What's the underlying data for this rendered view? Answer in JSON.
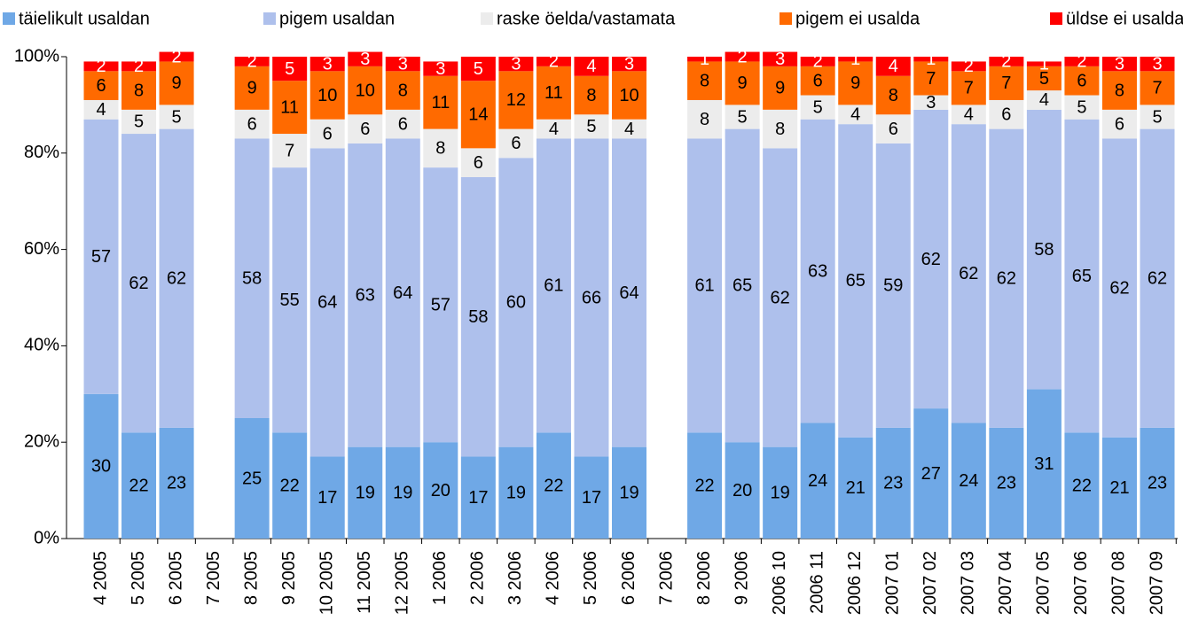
{
  "chart_data": {
    "type": "stacked_bar",
    "categories": [
      "4 2005",
      "5 2005",
      "6 2005",
      "7 2005",
      "8 2005",
      "9 2005",
      "10 2005",
      "11 2005",
      "12 2005",
      "1 2006",
      "2 2006",
      "3 2006",
      "4 2006",
      "5 2006",
      "6 2006",
      "7 2006",
      "8 2006",
      "9 2006",
      "2006 10",
      "2006 11",
      "2006 12",
      "2007 01",
      "2007 02",
      "2007 03",
      "2007 04",
      "2007 05",
      "2007 06",
      "2007 08",
      "2007 09"
    ],
    "series": [
      {
        "name": "täielikult usaldan",
        "color": "#6fa8e6",
        "values": [
          30,
          22,
          23,
          null,
          25,
          22,
          17,
          19,
          19,
          20,
          17,
          19,
          22,
          17,
          19,
          null,
          22,
          20,
          19,
          24,
          21,
          23,
          27,
          24,
          23,
          31,
          22,
          21,
          23
        ]
      },
      {
        "name": "pigem usaldan",
        "color": "#aec0ec",
        "values": [
          57,
          62,
          62,
          null,
          58,
          55,
          64,
          63,
          64,
          57,
          58,
          60,
          61,
          66,
          64,
          null,
          61,
          65,
          62,
          63,
          65,
          59,
          62,
          62,
          62,
          58,
          65,
          62,
          62
        ]
      },
      {
        "name": "raske öelda/vastamata",
        "color": "#ececec",
        "values": [
          4,
          5,
          5,
          null,
          6,
          7,
          6,
          6,
          6,
          8,
          6,
          6,
          4,
          5,
          4,
          null,
          8,
          5,
          8,
          5,
          4,
          6,
          3,
          4,
          6,
          4,
          5,
          6,
          5
        ]
      },
      {
        "name": "pigem ei usalda",
        "color": "#ff6a00",
        "values": [
          6,
          8,
          9,
          null,
          9,
          11,
          10,
          10,
          8,
          11,
          14,
          12,
          11,
          8,
          10,
          null,
          8,
          9,
          9,
          6,
          9,
          8,
          7,
          7,
          7,
          5,
          6,
          8,
          7
        ]
      },
      {
        "name": "üldse ei usalda",
        "color": "#ff0000",
        "values": [
          2,
          2,
          2,
          null,
          2,
          5,
          3,
          3,
          3,
          3,
          5,
          3,
          2,
          4,
          3,
          null,
          1,
          2,
          3,
          2,
          1,
          4,
          1,
          2,
          2,
          1,
          2,
          3,
          3
        ]
      }
    ],
    "ylim": [
      0,
      100
    ],
    "yticks": [
      {
        "value": 0,
        "label": "0%"
      },
      {
        "value": 20,
        "label": "20%"
      },
      {
        "value": 40,
        "label": "40%"
      },
      {
        "value": 60,
        "label": "60%"
      },
      {
        "value": 80,
        "label": "80%"
      },
      {
        "value": 100,
        "label": "100%"
      }
    ],
    "legend": "top"
  }
}
